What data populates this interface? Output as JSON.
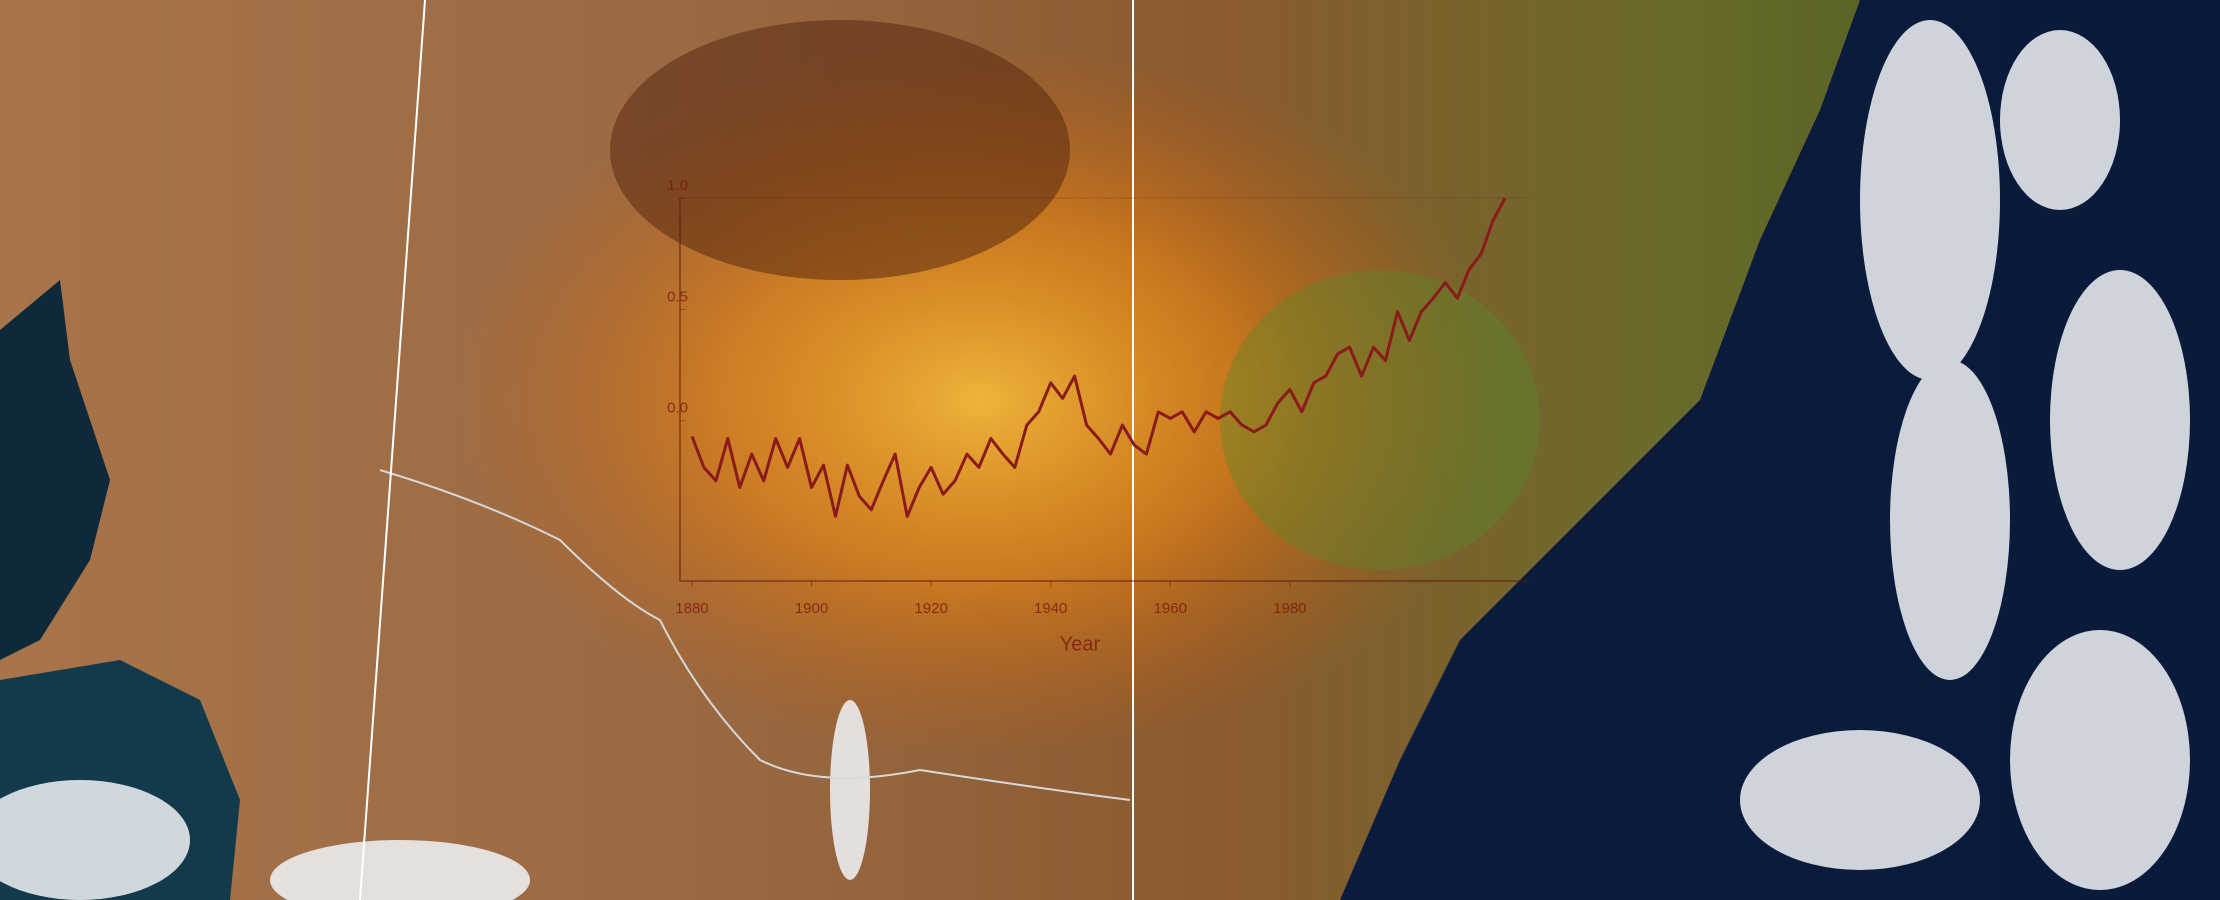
{
  "chart_data": {
    "type": "line",
    "x_label": "Year",
    "x": [
      1880,
      1882,
      1884,
      1886,
      1888,
      1890,
      1892,
      1894,
      1896,
      1898,
      1900,
      1902,
      1904,
      1906,
      1908,
      1910,
      1912,
      1914,
      1916,
      1918,
      1920,
      1922,
      1924,
      1926,
      1928,
      1930,
      1932,
      1934,
      1936,
      1938,
      1940,
      1942,
      1944,
      1946,
      1948,
      1950,
      1952,
      1954,
      1956,
      1958,
      1960,
      1962,
      1964,
      1966,
      1968,
      1970,
      1972,
      1974,
      1976,
      1978,
      1980,
      1982,
      1984,
      1986,
      1988,
      1990,
      1992,
      1994,
      1996,
      1998,
      2000,
      2002,
      2004,
      2006,
      2008,
      2010,
      2012,
      2014,
      2016
    ],
    "series": [
      {
        "color": "#8b1a1a",
        "values": [
          -0.07,
          -0.21,
          -0.27,
          -0.08,
          -0.3,
          -0.15,
          -0.27,
          -0.08,
          -0.21,
          -0.08,
          -0.3,
          -0.2,
          -0.43,
          -0.2,
          -0.34,
          -0.4,
          -0.27,
          -0.15,
          -0.43,
          -0.3,
          -0.21,
          -0.33,
          -0.27,
          -0.15,
          -0.21,
          -0.08,
          -0.15,
          -0.21,
          -0.02,
          0.04,
          0.17,
          0.1,
          0.2,
          -0.02,
          -0.08,
          -0.15,
          -0.02,
          -0.11,
          -0.15,
          0.04,
          0.01,
          0.04,
          -0.05,
          0.04,
          0.01,
          0.04,
          -0.02,
          -0.05,
          -0.02,
          0.08,
          0.14,
          0.04,
          0.17,
          0.2,
          0.3,
          0.33,
          0.2,
          0.33,
          0.27,
          0.49,
          0.36,
          0.49,
          0.55,
          0.62,
          0.55,
          0.68,
          0.75,
          0.9,
          1.0
        ]
      }
    ],
    "xlim": [
      1878,
      2020
    ],
    "xticks": [
      1880,
      1900,
      1920,
      1940,
      1960,
      1980
    ],
    "ylim": [
      -0.72,
      1.0
    ],
    "yticks": [
      {
        "value": 0,
        "label": "0.0"
      },
      {
        "value": 0.5,
        "label": "0.5"
      },
      {
        "value": 1,
        "label": "1.0"
      }
    ],
    "grid": false
  }
}
